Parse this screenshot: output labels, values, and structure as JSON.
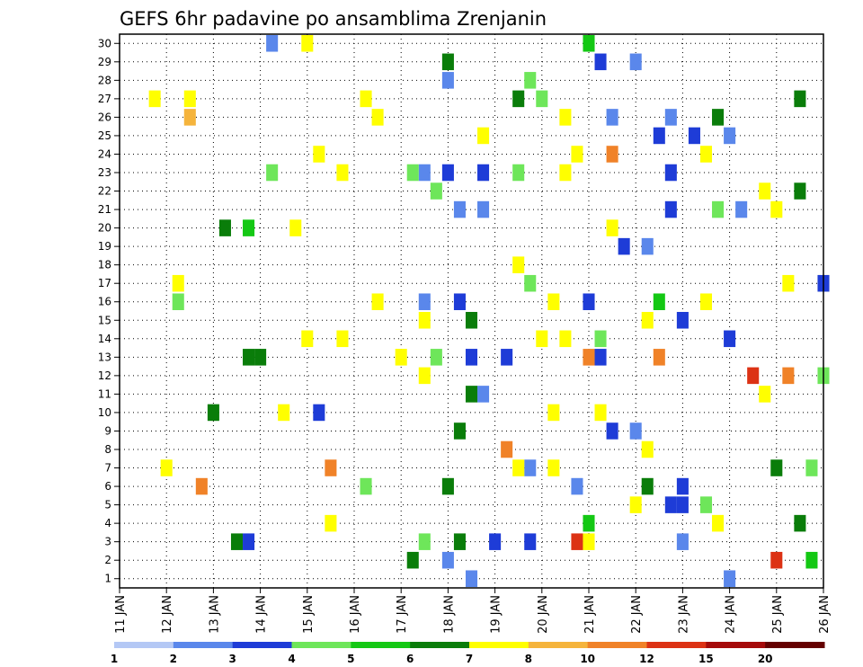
{
  "chart_data": {
    "type": "heatmap",
    "title": "GEFS 6hr padavine po ansamblima Zrenjanin",
    "x_ticks": [
      "11 JAN",
      "12 JAN",
      "13 JAN",
      "14 JAN",
      "15 JAN",
      "16 JAN",
      "17 JAN",
      "18 JAN",
      "19 JAN",
      "20 JAN",
      "21 JAN",
      "22 JAN",
      "23 JAN",
      "24 JAN",
      "25 JAN",
      "26 JAN"
    ],
    "x_range_steps": 61,
    "y_ticks": [
      "1",
      "2",
      "3",
      "4",
      "5",
      "6",
      "7",
      "8",
      "9",
      "10",
      "11",
      "12",
      "13",
      "14",
      "15",
      "16",
      "17",
      "18",
      "19",
      "20",
      "21",
      "22",
      "23",
      "24",
      "25",
      "26",
      "27",
      "28",
      "29",
      "30"
    ],
    "grid": true,
    "colorbar": {
      "labels": [
        "1",
        "2",
        "3",
        "4",
        "5",
        "6",
        "7",
        "8",
        "10",
        "12",
        "15",
        "20"
      ],
      "colors": [
        "#b4c8f5",
        "#5a87eb",
        "#1e3cd7",
        "#6ee65a",
        "#14c814",
        "#0a7d0a",
        "#ffff00",
        "#f5b43c",
        "#f08228",
        "#dc3214",
        "#a50a0a",
        "#640000"
      ]
    },
    "cells": [
      [
        0,
        5,
        3
      ],
      [
        0,
        6,
        7
      ],
      [
        0,
        7,
        8
      ],
      [
        1,
        10,
        5
      ],
      [
        1,
        11,
        5
      ],
      [
        1,
        11,
        4
      ],
      [
        1,
        29,
        1
      ],
      [
        1,
        30,
        1
      ],
      [
        1,
        31,
        1
      ],
      [
        1,
        34,
        5
      ],
      [
        1,
        35,
        1
      ],
      [
        1,
        38,
        6
      ],
      [
        1,
        39,
        9
      ],
      [
        1,
        40,
        8
      ],
      [
        1,
        42,
        1
      ],
      [
        1,
        44,
        1
      ],
      [
        1,
        45,
        1
      ],
      [
        1,
        48,
        2
      ],
      [
        1,
        51,
        3
      ],
      [
        1,
        52,
        1
      ],
      [
        2,
        18,
        8
      ],
      [
        2,
        22,
        6
      ],
      [
        2,
        26,
        6
      ],
      [
        2,
        28,
        1
      ],
      [
        2,
        30,
        5
      ],
      [
        2,
        31,
        1
      ],
      [
        2,
        34,
        6
      ],
      [
        2,
        35,
        3
      ],
      [
        2,
        36,
        3
      ],
      [
        2,
        37,
        6
      ],
      [
        2,
        45,
        6
      ],
      [
        2,
        47,
        2
      ],
      [
        3,
        3,
        6
      ],
      [
        3,
        4,
        6
      ],
      [
        3,
        5,
        6
      ],
      [
        3,
        6,
        6
      ],
      [
        3,
        8,
        5
      ],
      [
        3,
        9,
        5
      ],
      [
        3,
        11,
        2
      ],
      [
        3,
        12,
        5
      ],
      [
        3,
        13,
        3
      ],
      [
        3,
        13,
        1
      ],
      [
        3,
        14,
        6
      ],
      [
        3,
        15,
        6
      ],
      [
        3,
        16,
        6
      ],
      [
        3,
        17,
        2
      ],
      [
        3,
        19,
        6
      ],
      [
        3,
        21,
        3
      ],
      [
        3,
        22,
        6
      ],
      [
        3,
        25,
        5
      ],
      [
        3,
        26,
        6
      ],
      [
        3,
        27,
        3
      ],
      [
        3,
        28,
        1
      ],
      [
        3,
        30,
        5
      ],
      [
        3,
        31,
        6
      ],
      [
        3,
        33,
        8
      ],
      [
        3,
        34,
        6
      ],
      [
        3,
        35,
        3
      ],
      [
        3,
        38,
        6
      ],
      [
        3,
        39,
        6
      ],
      [
        3,
        40,
        4
      ],
      [
        3,
        41,
        3
      ],
      [
        3,
        42,
        8
      ],
      [
        3,
        46,
        8
      ],
      [
        3,
        47,
        2
      ],
      [
        3,
        48,
        1
      ],
      [
        3,
        50,
        6
      ],
      [
        3,
        51,
        5
      ],
      [
        3,
        54,
        9
      ],
      [
        3,
        55,
        6
      ],
      [
        3,
        56,
        9
      ],
      [
        3,
        57,
        8
      ],
      [
        3,
        58,
        5
      ],
      [
        3,
        59,
        4
      ],
      [
        3,
        60,
        3
      ],
      [
        4,
        40,
        4
      ],
      [
        4,
        41,
        6
      ],
      [
        4,
        42,
        6
      ],
      [
        4,
        45,
        5
      ],
      [
        4,
        46,
        4
      ],
      [
        4,
        47,
        1
      ],
      [
        4,
        48,
        2
      ],
      [
        4,
        52,
        1
      ],
      [
        4,
        55,
        6
      ],
      [
        4,
        56,
        6
      ],
      [
        4,
        58,
        5
      ],
      [
        4,
        60,
        6
      ],
      [
        5,
        26,
        1
      ],
      [
        5,
        28,
        5
      ],
      [
        5,
        29,
        2
      ],
      [
        5,
        36,
        6
      ],
      [
        5,
        40,
        6
      ],
      [
        5,
        41,
        2
      ],
      [
        6,
        26,
        1
      ],
      [
        6,
        28,
        5
      ],
      [
        6,
        29,
        5
      ],
      [
        6,
        37,
        6
      ],
      [
        6,
        41,
        2
      ],
      [
        6,
        42,
        2
      ],
      [
        6,
        43,
        2
      ],
      [
        6,
        44,
        1
      ],
      [
        6,
        50,
        6
      ],
      [
        6,
        51,
        6
      ],
      [
        6,
        52,
        2
      ],
      [
        7,
        16,
        6
      ],
      [
        7,
        17,
        6
      ],
      [
        7,
        18,
        6
      ],
      [
        7,
        19,
        6
      ],
      [
        7,
        21,
        6
      ],
      [
        7,
        24,
        6
      ],
      [
        7,
        25,
        3
      ],
      [
        7,
        26,
        3
      ],
      [
        7,
        27,
        3
      ],
      [
        7,
        28,
        2
      ],
      [
        7,
        29,
        5
      ],
      [
        7,
        30,
        2
      ],
      [
        7,
        31,
        2
      ],
      [
        7,
        32,
        2
      ],
      [
        7,
        33,
        2
      ],
      [
        7,
        34,
        3
      ],
      [
        7,
        35,
        2
      ],
      [
        7,
        37,
        6
      ],
      [
        7,
        38,
        6
      ],
      [
        7,
        39,
        1
      ],
      [
        7,
        40,
        2
      ],
      [
        7,
        44,
        6
      ],
      [
        7,
        45,
        6
      ],
      [
        7,
        46,
        2
      ],
      [
        7,
        47,
        2
      ],
      [
        7,
        48,
        2
      ],
      [
        7,
        49,
        2
      ],
      [
        7,
        50,
        3
      ],
      [
        7,
        53,
        1
      ],
      [
        7,
        56,
        5
      ],
      [
        7,
        57,
        6
      ],
      [
        7,
        58,
        5
      ],
      [
        7,
        59,
        3
      ],
      [
        7,
        60,
        2
      ]
    ],
    "note_cells_unit": "cell format is [row_group, step, colour_index]"
  }
}
